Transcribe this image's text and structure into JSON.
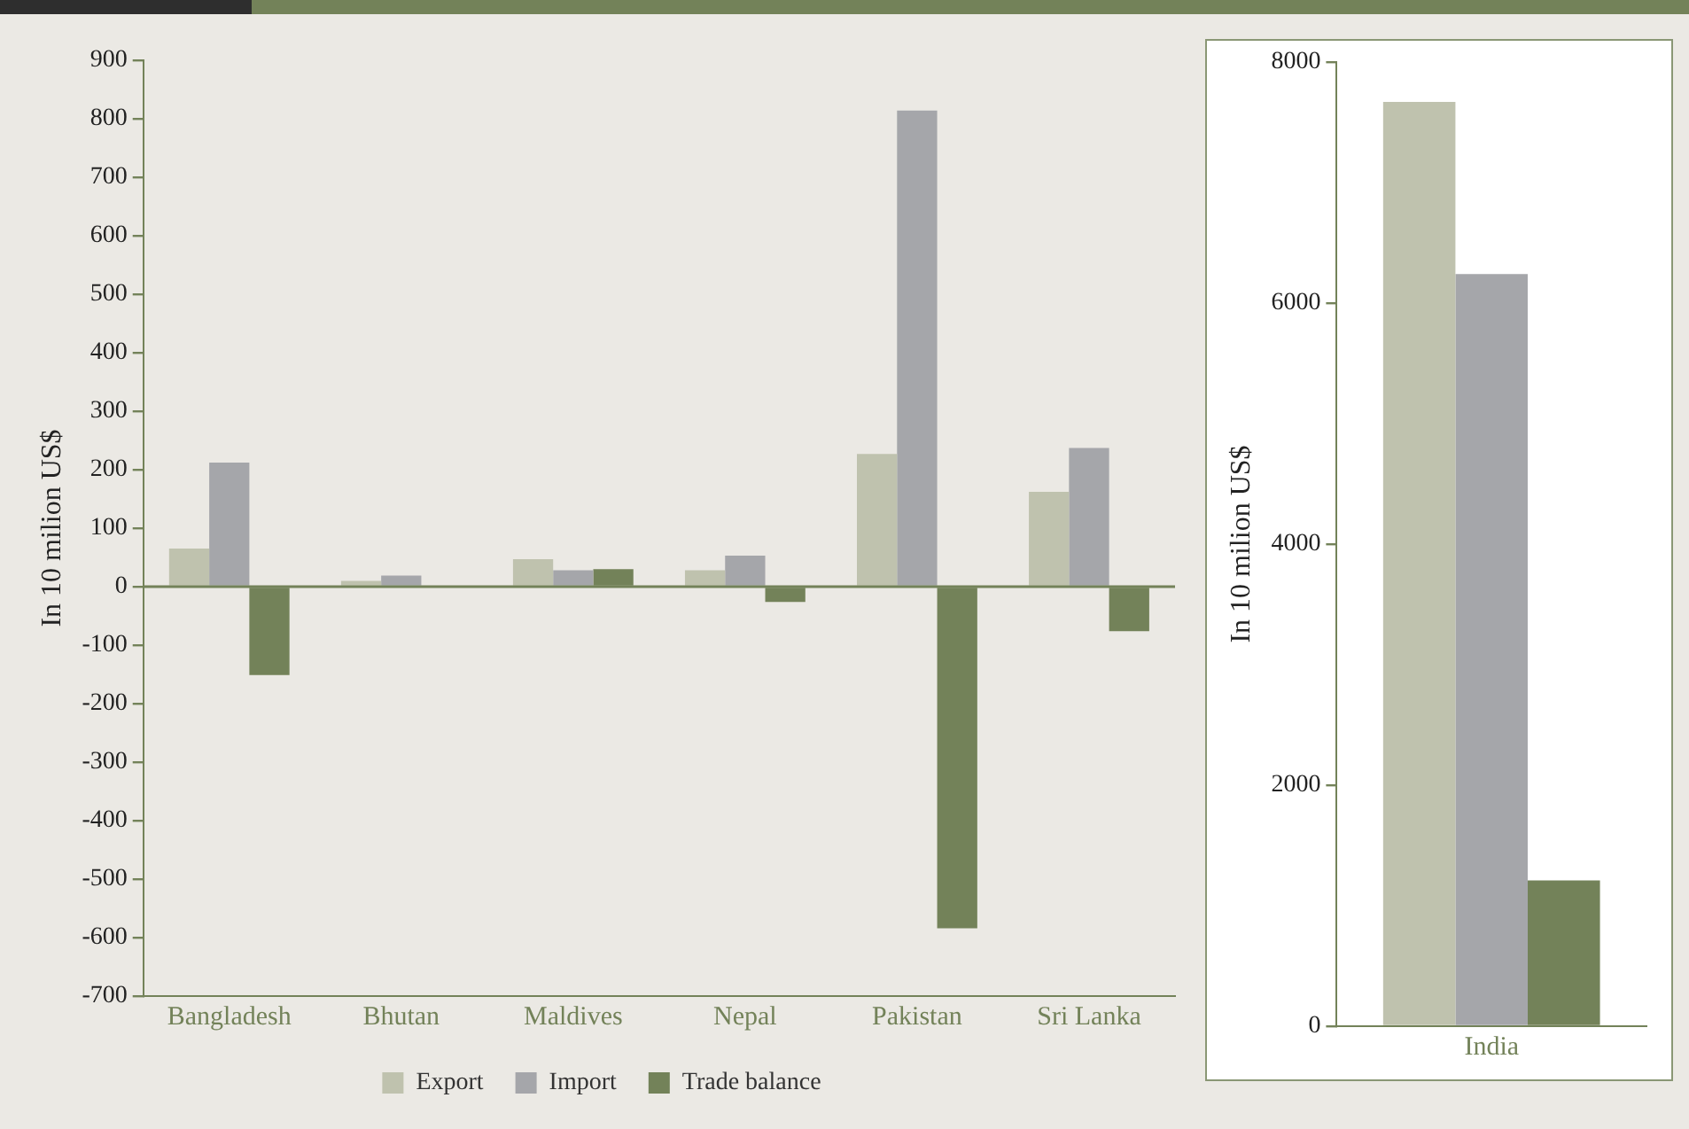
{
  "chart_data": [
    {
      "type": "bar",
      "ylabel": "In 10 milion US$",
      "categories": [
        "Bangladesh",
        "Bhutan",
        "Maldives",
        "Nepal",
        "Pakistan",
        "Sri Lanka"
      ],
      "series": [
        {
          "name": "Export",
          "color": "#bfc2ae",
          "values": [
            65,
            10,
            47,
            28,
            227,
            162
          ]
        },
        {
          "name": "Import",
          "color": "#a5a6aa",
          "values": [
            212,
            19,
            28,
            53,
            814,
            237
          ]
        },
        {
          "name": "Trade balance",
          "color": "#738259",
          "values": [
            -151,
            null,
            30,
            -26,
            -584,
            -76
          ]
        }
      ],
      "ylim": [
        -700,
        900
      ],
      "yticks": [
        -700,
        -600,
        -500,
        -400,
        -300,
        -200,
        -100,
        0,
        100,
        200,
        300,
        400,
        500,
        600,
        700,
        800,
        900
      ],
      "grid": false,
      "legend": "bottom",
      "ref_lines": [
        {
          "axis": "y",
          "value": 0,
          "color": "#738259"
        }
      ]
    },
    {
      "type": "bar",
      "ylabel": "In 10 milion US$",
      "categories": [
        "India"
      ],
      "series": [
        {
          "color": "#bfc2ae",
          "values": [
            7670
          ]
        },
        {
          "color": "#a5a6aa",
          "values": [
            6240
          ]
        },
        {
          "color": "#738259",
          "values": [
            1210
          ]
        }
      ],
      "ylim": [
        0,
        8000
      ],
      "yticks": [
        0,
        2000,
        4000,
        6000,
        8000
      ],
      "grid": false,
      "legend": false
    }
  ]
}
